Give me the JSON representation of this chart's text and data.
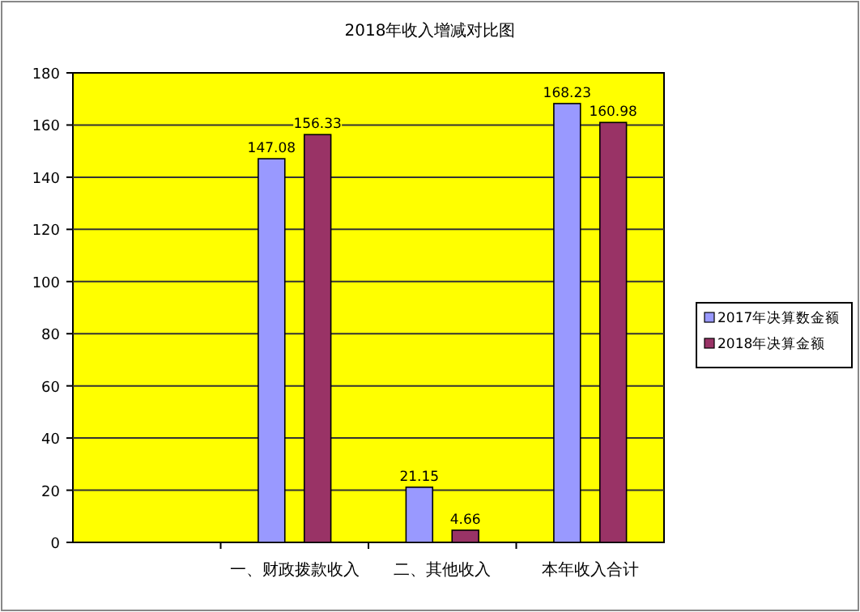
{
  "chart_data": {
    "type": "bar",
    "title": "2018年收入增减对比图",
    "categories": [
      null,
      "一、财政拨款收入",
      "二、其他收入",
      "本年收入合计"
    ],
    "series": [
      {
        "name": "2017年决算数金额",
        "color": "#9999ff",
        "values": [
          null,
          147.08,
          21.15,
          168.23
        ]
      },
      {
        "name": "2018年决算金额",
        "color": "#993366",
        "values": [
          null,
          156.33,
          4.66,
          160.98
        ]
      }
    ],
    "ylim": [
      0,
      180
    ],
    "yticks": [
      0,
      20,
      40,
      60,
      80,
      100,
      120,
      140,
      160,
      180
    ],
    "grid": "y",
    "legend": "right",
    "data_labels": true
  }
}
